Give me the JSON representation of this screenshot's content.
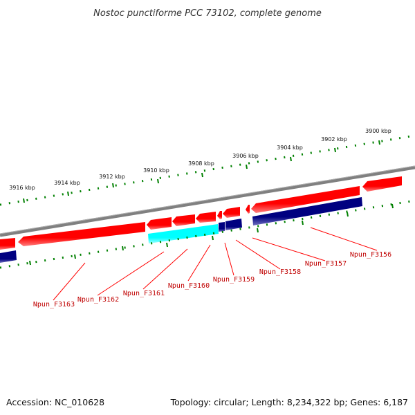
{
  "title": "Nostoc punctiforme PCC 73102, complete genome",
  "footer": {
    "accession": "Accession: NC_010628",
    "summary": "Topology: circular; Length: 8,234,322 bp; Genes: 6,187"
  },
  "colors": {
    "backbone": "#808080",
    "forward_strand": "#ff0000",
    "reverse_strand": "#000080",
    "highlight": "#00ffff",
    "ticks": "#008000",
    "label_lines": "#ff0000"
  },
  "scale_labels": [
    "3900 kbp",
    "3902 kbp",
    "3904 kbp",
    "3906 kbp",
    "3908 kbp",
    "3910 kbp",
    "3912 kbp",
    "3914 kbp",
    "3916 kbp"
  ],
  "gene_labels": [
    "Npun_F3156",
    "Npun_F3157",
    "Npun_F3158",
    "Npun_F3159",
    "Npun_F3160",
    "Npun_F3161",
    "Npun_F3162",
    "Npun_F3163"
  ]
}
